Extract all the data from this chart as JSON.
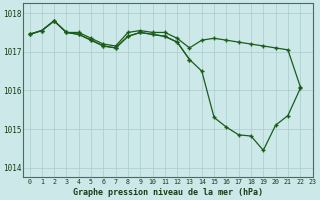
{
  "title": "Graphe pression niveau de la mer (hPa)",
  "bg_color": "#cce8e8",
  "grid_color": "#aacccc",
  "line_color": "#1a5c1a",
  "xlim": [
    -0.5,
    23
  ],
  "ylim": [
    1013.75,
    1018.25
  ],
  "yticks": [
    1014,
    1015,
    1016,
    1017,
    1018
  ],
  "xticks": [
    0,
    1,
    2,
    3,
    4,
    5,
    6,
    7,
    8,
    9,
    10,
    11,
    12,
    13,
    14,
    15,
    16,
    17,
    18,
    19,
    20,
    21,
    22,
    23
  ],
  "series1": {
    "x": [
      0,
      1,
      2,
      3,
      4,
      5,
      6,
      7,
      8,
      9,
      10,
      11,
      12,
      13,
      14,
      15,
      16,
      17,
      18,
      19,
      20,
      21,
      22
    ],
    "y": [
      1017.45,
      1017.55,
      1017.8,
      1017.5,
      1017.5,
      1017.35,
      1017.2,
      1017.15,
      1017.5,
      1017.55,
      1017.5,
      1017.5,
      1017.35,
      1017.1,
      1017.3,
      1017.35,
      1017.3,
      1017.25,
      1017.2,
      1017.15,
      1017.1,
      1017.05,
      1016.1
    ]
  },
  "series2": {
    "x": [
      0,
      1,
      2,
      3,
      4,
      5,
      6,
      7,
      8,
      9,
      10,
      11,
      12,
      13
    ],
    "y": [
      1017.45,
      1017.55,
      1017.8,
      1017.5,
      1017.45,
      1017.3,
      1017.15,
      1017.1,
      1017.4,
      1017.5,
      1017.45,
      1017.4,
      1017.25,
      1016.8
    ]
  },
  "series3": {
    "x": [
      0,
      1,
      2,
      3,
      4,
      5,
      6,
      7,
      8,
      9,
      10,
      11,
      12,
      13,
      14,
      15,
      16,
      17,
      18,
      19,
      20,
      21,
      22
    ],
    "y": [
      1017.45,
      1017.55,
      1017.8,
      1017.5,
      1017.45,
      1017.3,
      1017.15,
      1017.1,
      1017.4,
      1017.5,
      1017.45,
      1017.4,
      1017.25,
      1016.8,
      1016.5,
      1015.3,
      1015.05,
      1014.85,
      1014.82,
      1014.45,
      1015.1,
      1015.35,
      1016.05
    ]
  }
}
